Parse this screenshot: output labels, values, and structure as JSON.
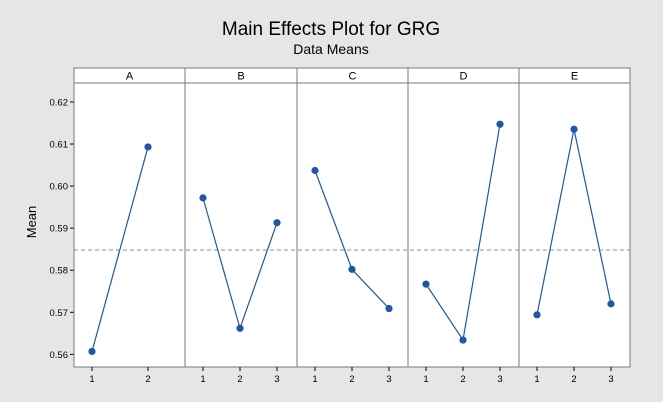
{
  "chart_data": {
    "type": "line",
    "title": "Main Effects Plot for GRG",
    "subtitle": "Data Means",
    "ylabel": "Mean",
    "ylim": [
      0.557,
      0.6245
    ],
    "yticks": [
      "0.56",
      "0.57",
      "0.58",
      "0.59",
      "0.60",
      "0.61",
      "0.62"
    ],
    "reference_line": 0.5848,
    "grid": false,
    "colors": {
      "series": "#1f57a4",
      "reference": "#8c8c8c"
    },
    "panels": [
      {
        "name": "A",
        "x": [
          "1",
          "2"
        ],
        "values": [
          0.5607,
          0.6093
        ]
      },
      {
        "name": "B",
        "x": [
          "1",
          "2",
          "3"
        ],
        "values": [
          0.5972,
          0.5662,
          0.5913
        ]
      },
      {
        "name": "C",
        "x": [
          "1",
          "2",
          "3"
        ],
        "values": [
          0.6037,
          0.5802,
          0.5709
        ]
      },
      {
        "name": "D",
        "x": [
          "1",
          "2",
          "3"
        ],
        "values": [
          0.5767,
          0.5634,
          0.6147
        ]
      },
      {
        "name": "E",
        "x": [
          "1",
          "2",
          "3"
        ],
        "values": [
          0.5694,
          0.6135,
          0.572
        ]
      }
    ]
  }
}
